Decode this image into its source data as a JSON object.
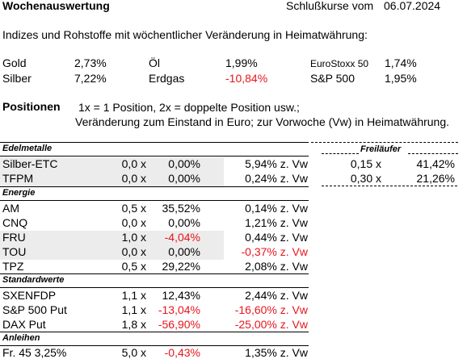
{
  "header": {
    "title": "Wochenauswertung",
    "date_label": "Schlußkurse vom",
    "date": "06.07.2024"
  },
  "indices": {
    "caption": "Indizes und Rohstoffe mit wöchentlicher Veränderung in Heimatwährung:",
    "items": [
      {
        "name": "Gold",
        "value": "2,73%"
      },
      {
        "name": "Silber",
        "value": "7,22%"
      },
      {
        "name": "Öl",
        "value": "1,99%"
      },
      {
        "name": "Erdgas",
        "value": "-10,84%"
      },
      {
        "name": "EuroStoxx 50",
        "value": "1,74%"
      },
      {
        "name": "S&P 500",
        "value": "1,95%"
      }
    ]
  },
  "positions": {
    "title": "Positionen",
    "note_line1": "1x = 1 Position, 2x = doppelte Position usw.;",
    "note_line2": "Veränderung zum Einstand in Euro; zur Vorwoche (Vw) in Heimatwährung."
  },
  "sections": [
    {
      "title": "Edelmetalle",
      "rows": [
        {
          "name": "Silber-ETC",
          "factor": "0,0 x",
          "change": "0,00%",
          "weekly": "5,94% z. Vw"
        },
        {
          "name": "TFPM",
          "factor": "0,0 x",
          "change": "0,00%",
          "weekly": "0,24% z. Vw"
        }
      ]
    },
    {
      "title": "Energie",
      "rows": [
        {
          "name": "AM",
          "factor": "0,5 x",
          "change": "35,52%",
          "weekly": "0,14% z. Vw"
        },
        {
          "name": "CNQ",
          "factor": "0,0 x",
          "change": "0,00%",
          "weekly": "1,21% z. Vw"
        },
        {
          "name": "FRU",
          "factor": "1,0 x",
          "change": "-4,04%",
          "weekly": "0,44% z. Vw"
        },
        {
          "name": "TOU",
          "factor": "0,0 x",
          "change": "0,00%",
          "weekly": "-0,37% z. Vw"
        },
        {
          "name": "TPZ",
          "factor": "0,5 x",
          "change": "29,22%",
          "weekly": "2,08% z. Vw"
        }
      ]
    },
    {
      "title": "Standardwerte",
      "rows": [
        {
          "name": "SXENFDP",
          "factor": "1,1 x",
          "change": "12,43%",
          "weekly": "2,44% z. Vw"
        },
        {
          "name": "S&P 500 Put",
          "factor": "1,1 x",
          "change": "-13,04%",
          "weekly": "-16,60% z. Vw"
        },
        {
          "name": "DAX Put",
          "factor": "1,8 x",
          "change": "-56,90%",
          "weekly": "-25,00% z. Vw"
        }
      ]
    },
    {
      "title": "Anleihen",
      "rows": [
        {
          "name": "Fr. 45 3,25%",
          "factor": "5,0 x",
          "change": "-0,43%",
          "weekly": "1,35% z. Vw"
        }
      ]
    }
  ],
  "freilaeufer": {
    "title": "Freiläufer",
    "rows": [
      {
        "factor": "0,15 x",
        "change": "41,42%"
      },
      {
        "factor": "0,30 x",
        "change": "21,26%"
      }
    ]
  },
  "colors": {
    "negative": "#e8141c",
    "row_shade": "#ececec"
  }
}
